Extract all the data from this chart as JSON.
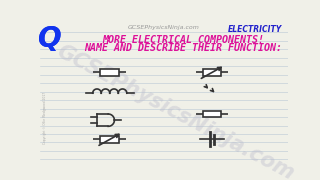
{
  "bg_color": "#f0f0e8",
  "ruled_line_color": "#c0ccd8",
  "title_line1": "MORE ELECTRICAL COMPONENTS!",
  "title_line2": "NAME AND DESCRIBE THEIR FUNCTION:",
  "title_color": "#dd1199",
  "header_website": "GCSEPhysicsNinja.com",
  "header_website_color": "#999999",
  "header_elec": "ELECTRICITY",
  "header_elec_color": "#2222cc",
  "q_color": "#1133ee",
  "symbol_color": "#333333",
  "watermark_color": "#bbbbcc",
  "copyright_color": "#aaaaaa",
  "lw": 1.2
}
